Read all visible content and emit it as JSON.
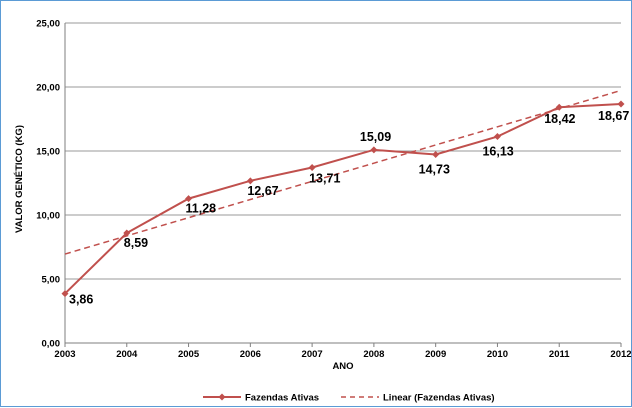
{
  "chart_data": {
    "type": "line",
    "title": "",
    "xlabel": "ANO",
    "ylabel": "VALOR GENÉTICO (KG)",
    "x": [
      "2003",
      "2004",
      "2005",
      "2006",
      "2007",
      "2008",
      "2009",
      "2010",
      "2011",
      "2012"
    ],
    "ylim": [
      0,
      25
    ],
    "yticks": [
      "0,00",
      "5,00",
      "10,00",
      "15,00",
      "20,00",
      "25,00"
    ],
    "grid": "horizontal",
    "legend_position": "bottom",
    "series": [
      {
        "name": "Fazendas Ativas",
        "values": [
          3.86,
          8.59,
          11.28,
          12.67,
          13.71,
          15.09,
          14.73,
          16.13,
          18.42,
          18.67
        ],
        "labels": [
          "3,86",
          "8,59",
          "11,28",
          "12,67",
          "13,71",
          "15,09",
          "14,73",
          "16,13",
          "18,42",
          "18,67"
        ],
        "color": "#c0504d",
        "marker": "diamond",
        "style": "solid"
      },
      {
        "name": "Linear (Fazendas Ativas)",
        "values": [
          6.95,
          8.37,
          9.79,
          11.21,
          12.63,
          14.05,
          15.47,
          16.89,
          18.31,
          19.73
        ],
        "color": "#c0504d",
        "style": "dashed"
      }
    ]
  }
}
